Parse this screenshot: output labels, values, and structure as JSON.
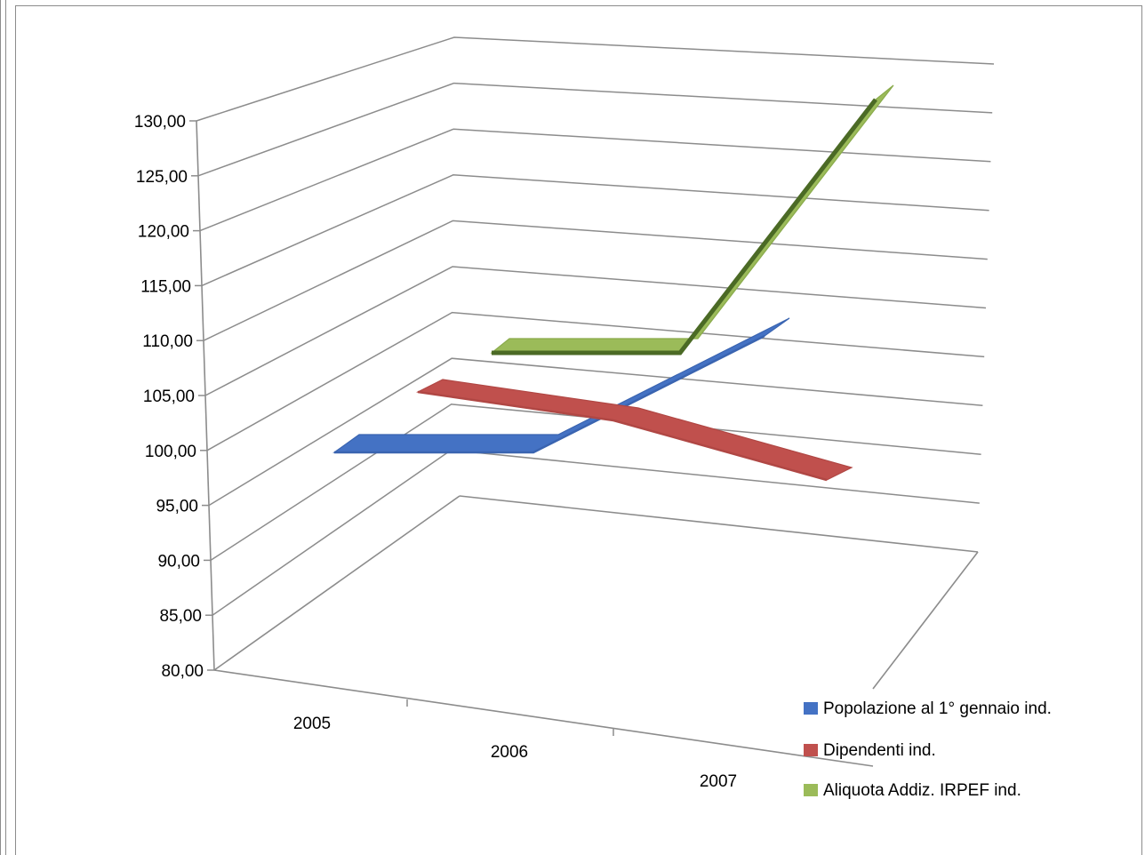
{
  "chart_data": {
    "type": "line",
    "style": "3d",
    "title": "",
    "xlabel": "",
    "ylabel": "",
    "categories": [
      "2005",
      "2006",
      "2007"
    ],
    "yticks": [
      "80,00",
      "85,00",
      "90,00",
      "95,00",
      "100,00",
      "105,00",
      "110,00",
      "115,00",
      "120,00",
      "125,00",
      "130,00"
    ],
    "ylim": [
      80,
      130
    ],
    "grid": true,
    "legend_position": "bottom-right",
    "series": [
      {
        "name": "Popolazione al 1° gennaio ind.",
        "values": [
          100,
          100,
          106.8
        ],
        "color": "#4472c4"
      },
      {
        "name": "Dipendenti ind.",
        "values": [
          100,
          97,
          94
        ],
        "color": "#c0504d"
      },
      {
        "name": "Aliquota Addiz. IRPEF ind.",
        "values": [
          100,
          100,
          133
        ],
        "color": "#9bbb59"
      }
    ]
  }
}
